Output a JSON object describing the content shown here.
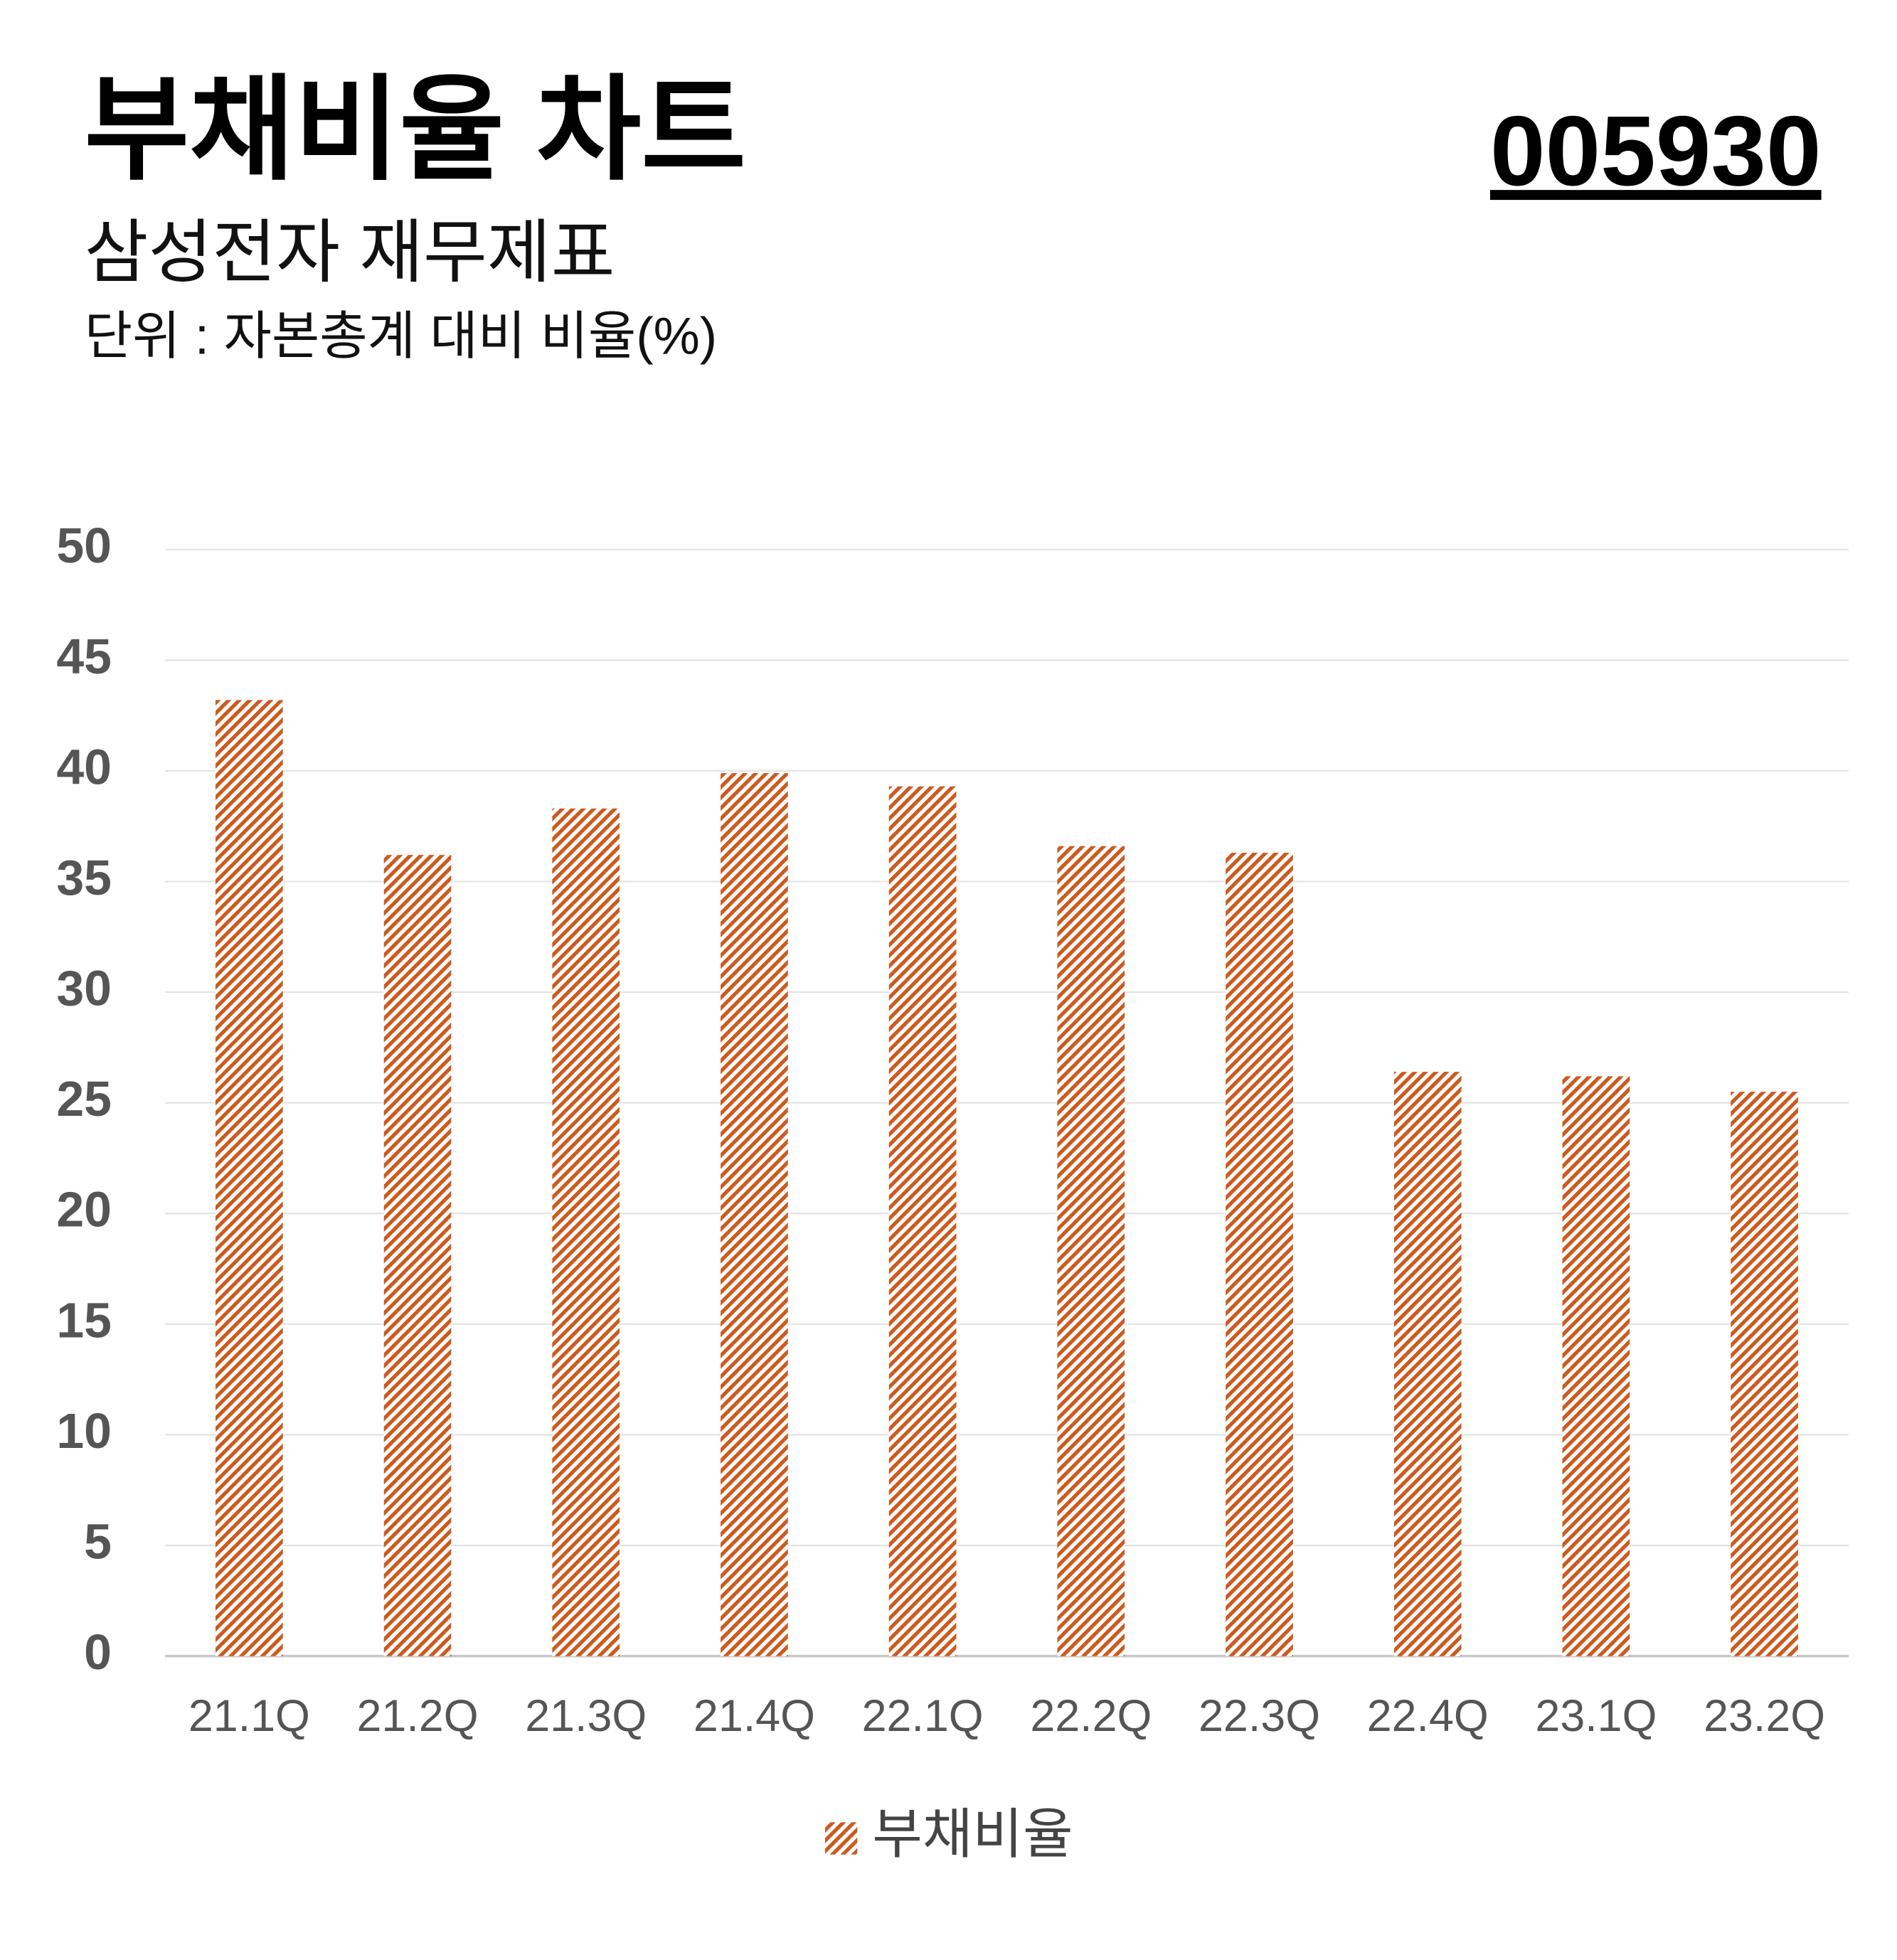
{
  "chart_data": {
    "type": "bar",
    "title": "부채비율 차트",
    "ticker": "005930",
    "subtitle": "삼성전자 재무제표",
    "unit_label": "단위 : 자본총계 대비 비율(%)",
    "categories": [
      "21.1Q",
      "21.2Q",
      "21.3Q",
      "21.4Q",
      "22.1Q",
      "22.2Q",
      "22.3Q",
      "22.4Q",
      "23.1Q",
      "23.2Q"
    ],
    "series": [
      {
        "name": "부채비율",
        "color": "#cc5a1e",
        "values": [
          43.2,
          36.2,
          38.3,
          39.9,
          39.3,
          36.6,
          36.3,
          26.4,
          26.2,
          25.5
        ]
      }
    ],
    "ylim": [
      0,
      50
    ],
    "yticks": [
      0,
      5,
      10,
      15,
      20,
      25,
      30,
      35,
      40,
      45,
      50
    ],
    "grid": true,
    "legend": "bottom",
    "pattern": "hatch"
  }
}
